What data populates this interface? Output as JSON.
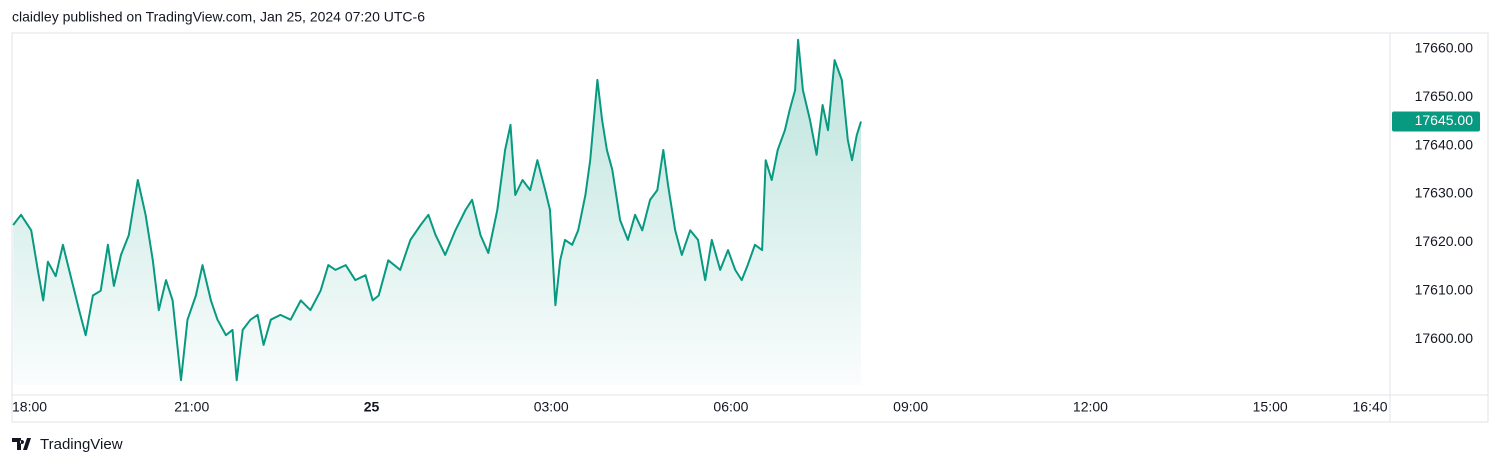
{
  "header": "claidley published on TradingView.com, Jan 25, 2024 07:20 UTC-6",
  "footer": "TradingView",
  "chart_data": {
    "type": "area",
    "color": "#089981",
    "grid": false,
    "x": [
      18.02,
      18.15,
      18.32,
      18.43,
      18.52,
      18.6,
      18.73,
      18.85,
      18.98,
      19.12,
      19.23,
      19.35,
      19.48,
      19.6,
      19.7,
      19.82,
      19.95,
      20.1,
      20.23,
      20.35,
      20.45,
      20.57,
      20.68,
      20.82,
      20.93,
      21.07,
      21.18,
      21.32,
      21.43,
      21.57,
      21.68,
      21.75,
      21.85,
      21.98,
      22.1,
      22.2,
      22.32,
      22.48,
      22.65,
      22.82,
      22.98,
      23.15,
      23.28,
      23.4,
      23.57,
      23.73,
      23.9,
      24.02,
      24.12,
      24.28,
      24.48,
      24.65,
      24.82,
      24.95,
      25.07,
      25.23,
      25.4,
      25.57,
      25.68,
      25.82,
      25.95,
      26.1,
      26.23,
      26.32,
      26.4,
      26.52,
      26.65,
      26.77,
      26.9,
      26.98,
      27.07,
      27.15,
      27.23,
      27.35,
      27.45,
      27.57,
      27.65,
      27.77,
      27.85,
      27.93,
      28.02,
      28.15,
      28.28,
      28.4,
      28.52,
      28.65,
      28.77,
      28.87,
      28.95,
      29.07,
      29.18,
      29.32,
      29.45,
      29.57,
      29.68,
      29.82,
      29.95,
      30.07,
      30.18,
      30.28,
      30.4,
      30.52,
      30.58,
      30.68,
      30.78,
      30.9,
      30.98,
      31.07,
      31.12,
      31.2,
      31.32,
      31.43,
      31.53,
      31.62,
      31.73,
      31.85,
      31.95,
      32.02,
      32.1,
      32.17
    ],
    "values": [
      17623.6,
      17625.7,
      17622.5,
      17614.3,
      17608,
      17616,
      17613,
      17619.5,
      17613,
      17606,
      17600.8,
      17609,
      17610,
      17619.5,
      17611,
      17617.4,
      17621.5,
      17632.9,
      17625.7,
      17616.3,
      17606,
      17612.2,
      17608,
      17591.5,
      17604,
      17609,
      17615.3,
      17608,
      17604,
      17600.8,
      17601.9,
      17591.5,
      17601.9,
      17604,
      17605,
      17598.8,
      17604,
      17605,
      17604,
      17608,
      17606,
      17610,
      17615.3,
      17614.3,
      17615.3,
      17612.2,
      17613.2,
      17608,
      17609,
      17616.3,
      17614.3,
      17620.5,
      17623.6,
      17625.7,
      17621.5,
      17617.4,
      17622.5,
      17626.7,
      17628.8,
      17621.5,
      17617.8,
      17626.7,
      17639.1,
      17644.3,
      17629.8,
      17632.9,
      17630.8,
      17637,
      17630.8,
      17626.7,
      17607,
      17616.3,
      17620.5,
      17619.5,
      17622.5,
      17629.8,
      17637,
      17653.6,
      17645.3,
      17639.1,
      17635,
      17624.6,
      17620.5,
      17625.7,
      17622.5,
      17628.8,
      17630.8,
      17639.1,
      17631.9,
      17622.5,
      17617.4,
      17622.5,
      17620.5,
      17612.2,
      17620.5,
      17614.3,
      17618.4,
      17614.3,
      17612.2,
      17615.3,
      17619.5,
      17618.4,
      17637,
      17632.9,
      17639.1,
      17643.2,
      17647.4,
      17651.5,
      17661.9,
      17651.5,
      17645.3,
      17638.1,
      17648.4,
      17643.2,
      17657.7,
      17653.6,
      17641.2,
      17637,
      17642.2,
      17645
    ],
    "last_value": 17645,
    "last_value_label": "17645.00",
    "xlim": [
      18,
      41
    ],
    "ylim": [
      17590.5,
      17663.3
    ],
    "xticks": [
      {
        "value": 18,
        "label": "18:00"
      },
      {
        "value": 21,
        "label": "21:00"
      },
      {
        "value": 24,
        "label": "25"
      },
      {
        "value": 27,
        "label": "03:00"
      },
      {
        "value": 30,
        "label": "06:00"
      },
      {
        "value": 33,
        "label": "09:00"
      },
      {
        "value": 36,
        "label": "12:00"
      },
      {
        "value": 39,
        "label": "15:00"
      },
      {
        "value": 40.6667,
        "label": "16:40"
      }
    ],
    "yticks": [
      {
        "value": 17600,
        "label": "17600.00"
      },
      {
        "value": 17610,
        "label": "17610.00"
      },
      {
        "value": 17620,
        "label": "17620.00"
      },
      {
        "value": 17630,
        "label": "17630.00"
      },
      {
        "value": 17640,
        "label": "17640.00"
      },
      {
        "value": 17650,
        "label": "17650.00"
      },
      {
        "value": 17660,
        "label": "17660.00"
      }
    ]
  }
}
